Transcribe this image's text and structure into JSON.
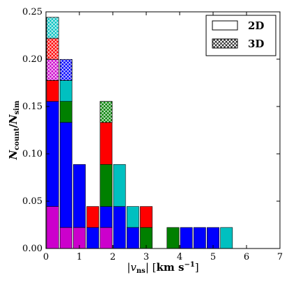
{
  "chart_data": {
    "type": "bar",
    "stacked": true,
    "xlabel": "|v_ns| [km s^-1]",
    "ylabel": "N_count/N_sim",
    "xlim": [
      0,
      7
    ],
    "ylim": [
      0,
      0.25
    ],
    "x_ticks": [
      0,
      1,
      2,
      3,
      4,
      5,
      6,
      7
    ],
    "y_ticks": [
      0.0,
      0.05,
      0.1,
      0.15,
      0.2,
      0.25
    ],
    "x_tick_labels": [
      "0",
      "1",
      "2",
      "3",
      "4",
      "5",
      "6",
      "7"
    ],
    "y_tick_labels": [
      "0.00",
      "0.05",
      "0.10",
      "0.15",
      "0.20",
      "0.25"
    ],
    "bin_width": 0.4,
    "unit_height": 0.0222,
    "colors": {
      "magenta": "#cc00cc",
      "blue": "#0000ff",
      "green": "#008000",
      "red": "#ff0000",
      "cyan": "#00c0c0"
    },
    "legend": {
      "position": "top-right",
      "entries": [
        {
          "label": "2D",
          "pattern": "solid"
        },
        {
          "label": "3D",
          "pattern": "crosshatch"
        }
      ]
    },
    "bins": [
      {
        "x": 0.0,
        "value": 0.244,
        "segments": [
          {
            "color": "magenta",
            "units": 2,
            "hatched": false
          },
          {
            "color": "blue",
            "units": 5,
            "hatched": false
          },
          {
            "color": "red",
            "units": 1,
            "hatched": false
          },
          {
            "color": "magenta",
            "units": 1,
            "hatched": true
          },
          {
            "color": "red",
            "units": 1,
            "hatched": true
          },
          {
            "color": "cyan",
            "units": 1,
            "hatched": true
          }
        ]
      },
      {
        "x": 0.4,
        "value": 0.2,
        "segments": [
          {
            "color": "magenta",
            "units": 1,
            "hatched": false
          },
          {
            "color": "blue",
            "units": 5,
            "hatched": false
          },
          {
            "color": "green",
            "units": 1,
            "hatched": false
          },
          {
            "color": "cyan",
            "units": 1,
            "hatched": false
          },
          {
            "color": "blue",
            "units": 1,
            "hatched": true
          }
        ]
      },
      {
        "x": 0.8,
        "value": 0.089,
        "segments": [
          {
            "color": "magenta",
            "units": 1,
            "hatched": false
          },
          {
            "color": "blue",
            "units": 3,
            "hatched": false
          }
        ]
      },
      {
        "x": 1.2,
        "value": 0.044,
        "segments": [
          {
            "color": "blue",
            "units": 1,
            "hatched": false
          },
          {
            "color": "red",
            "units": 1,
            "hatched": false
          }
        ]
      },
      {
        "x": 1.6,
        "value": 0.156,
        "segments": [
          {
            "color": "magenta",
            "units": 1,
            "hatched": false
          },
          {
            "color": "blue",
            "units": 1,
            "hatched": false
          },
          {
            "color": "green",
            "units": 2,
            "hatched": false
          },
          {
            "color": "red",
            "units": 2,
            "hatched": false
          },
          {
            "color": "green",
            "units": 1,
            "hatched": true
          }
        ]
      },
      {
        "x": 2.0,
        "value": 0.089,
        "segments": [
          {
            "color": "blue",
            "units": 2,
            "hatched": false
          },
          {
            "color": "cyan",
            "units": 2,
            "hatched": false
          }
        ]
      },
      {
        "x": 2.4,
        "value": 0.044,
        "segments": [
          {
            "color": "blue",
            "units": 1,
            "hatched": false
          },
          {
            "color": "cyan",
            "units": 1,
            "hatched": false
          }
        ]
      },
      {
        "x": 2.8,
        "value": 0.044,
        "segments": [
          {
            "color": "green",
            "units": 1,
            "hatched": false
          },
          {
            "color": "red",
            "units": 1,
            "hatched": false
          }
        ]
      },
      {
        "x": 3.6,
        "value": 0.022,
        "segments": [
          {
            "color": "green",
            "units": 1,
            "hatched": false
          }
        ]
      },
      {
        "x": 4.0,
        "value": 0.022,
        "segments": [
          {
            "color": "blue",
            "units": 1,
            "hatched": false
          }
        ]
      },
      {
        "x": 4.4,
        "value": 0.022,
        "segments": [
          {
            "color": "blue",
            "units": 1,
            "hatched": false
          }
        ]
      },
      {
        "x": 4.8,
        "value": 0.022,
        "segments": [
          {
            "color": "blue",
            "units": 1,
            "hatched": false
          }
        ]
      },
      {
        "x": 5.2,
        "value": 0.022,
        "segments": [
          {
            "color": "cyan",
            "units": 1,
            "hatched": false
          }
        ]
      }
    ]
  }
}
